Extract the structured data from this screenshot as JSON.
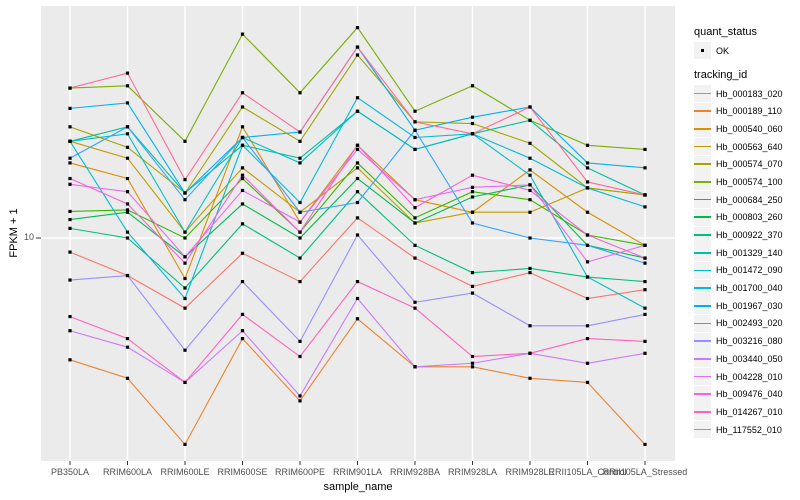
{
  "chart_data": {
    "type": "line",
    "title": "",
    "xlabel": "sample_name",
    "ylabel": "FPKM + 1",
    "y_scale": "log10",
    "y_tick_label": "10",
    "y_tick_value": 10,
    "ylim": [
      1.12,
      90
    ],
    "grid": "on",
    "legend_position": "right",
    "panel_bg": "#EBEBEB",
    "grid_color": "#FFFFFF",
    "point_color": "#000000",
    "axis_text_color": "#4d4d4d",
    "legend": {
      "quant_status_title": "quant_status",
      "quant_status_ok_label": "OK",
      "tracking_title": "tracking_id"
    },
    "categories": [
      "PB350LA",
      "RRIM600LA",
      "RRIM600LE",
      "RRIM600SE",
      "RRIM600PE",
      "RRIM901LA",
      "RRIM928BA",
      "RRIM928LA",
      "RRIM928LE",
      "RRII105LA_Control",
      "RRII105LA_Stressed"
    ],
    "series": [
      {
        "name": "Hb_000183_020",
        "color": "#F8766D",
        "values": [
          8.7,
          6.9,
          5.0,
          8.6,
          6.5,
          12.2,
          8.2,
          6.2,
          7.1,
          5.5,
          6.0
        ]
      },
      {
        "name": "Hb_000189_110",
        "color": "#EA8331",
        "values": [
          3.0,
          2.5,
          1.3,
          3.7,
          2.0,
          4.5,
          2.8,
          2.8,
          2.5,
          2.4,
          1.3
        ]
      },
      {
        "name": "Hb_000540_060",
        "color": "#D89000",
        "values": [
          21,
          18,
          6.7,
          30,
          11.7,
          25,
          14.6,
          12.9,
          19.6,
          12.9,
          9.3
        ]
      },
      {
        "name": "Hb_000563_640",
        "color": "#C09B00",
        "values": [
          26,
          22,
          10.6,
          20,
          12.9,
          20,
          11.6,
          12.9,
          12.9,
          16.4,
          15.3
        ]
      },
      {
        "name": "Hb_000574_070",
        "color": "#A3A500",
        "values": [
          30,
          24.5,
          15.6,
          36.5,
          26,
          61,
          31.5,
          31,
          25.5,
          16.4,
          15.3
        ]
      },
      {
        "name": "Hb_000574_100",
        "color": "#7CAE00",
        "values": [
          44,
          45,
          26,
          75,
          42,
          80,
          35,
          45,
          32,
          25,
          24
        ]
      },
      {
        "name": "Hb_000684_250",
        "color": "#39B600",
        "values": [
          13,
          13.2,
          10,
          18,
          10.6,
          21,
          12.2,
          15.8,
          14.6,
          10.3,
          9.3
        ]
      },
      {
        "name": "Hb_000803_260",
        "color": "#00BB4E",
        "values": [
          12,
          12.9,
          8.3,
          14,
          10,
          18,
          11.6,
          15,
          16.9,
          9.3,
          8.2
        ]
      },
      {
        "name": "Hb_000922_370",
        "color": "#00BF7D",
        "values": [
          11,
          10,
          6.1,
          11.5,
          8.2,
          15.8,
          9.3,
          7.1,
          7.4,
          6.8,
          6.5
        ]
      },
      {
        "name": "Hb_001329_140",
        "color": "#00C1A3",
        "values": [
          26,
          30,
          15.6,
          25,
          22,
          35,
          24,
          28,
          32,
          20,
          15.3
        ]
      },
      {
        "name": "Hb_001472_090",
        "color": "#00BFC4",
        "values": [
          26,
          28,
          10.6,
          27,
          21,
          35,
          24,
          28,
          18.6,
          6.8,
          5.0
        ]
      },
      {
        "name": "Hb_001700_040",
        "color": "#00BBDA",
        "values": [
          26,
          10.6,
          5.5,
          25,
          14.2,
          40,
          27,
          28,
          22,
          16.4,
          13.6
        ]
      },
      {
        "name": "Hb_001967_030",
        "color": "#00B0F6",
        "values": [
          36,
          38,
          15.6,
          27,
          28.5,
          66,
          29,
          33,
          36.5,
          21,
          20
        ]
      },
      {
        "name": "Hb_002493_020",
        "color": "#35A2FF",
        "values": [
          22,
          30,
          14.6,
          27,
          12.9,
          14.2,
          29,
          11.6,
          10,
          9.3,
          7.8
        ]
      },
      {
        "name": "Hb_003216_080",
        "color": "#9590FF",
        "values": [
          6.6,
          6.9,
          3.3,
          6.5,
          3.6,
          10.3,
          5.3,
          5.8,
          4.2,
          4.2,
          4.7
        ]
      },
      {
        "name": "Hb_003440_050",
        "color": "#C77CFF",
        "values": [
          4.0,
          3.4,
          2.4,
          4.0,
          2.1,
          5.5,
          2.8,
          2.9,
          3.2,
          2.9,
          3.2
        ]
      },
      {
        "name": "Hb_004228_010",
        "color": "#E76BF3",
        "values": [
          17,
          15.8,
          8.3,
          16,
          11.7,
          24,
          14.6,
          16.5,
          16.9,
          7.9,
          9.3
        ]
      },
      {
        "name": "Hb_009476_040",
        "color": "#FA62DB",
        "values": [
          18,
          14,
          7.8,
          18.6,
          10.6,
          25,
          13.5,
          18.6,
          16,
          10.3,
          8.2
        ]
      },
      {
        "name": "Hb_014267_010",
        "color": "#FF62BC",
        "values": [
          4.6,
          3.7,
          2.4,
          4.7,
          3.1,
          6.5,
          5.0,
          3.1,
          3.2,
          3.7,
          3.6
        ]
      },
      {
        "name": "Hb_117552_010",
        "color": "#FF6A98",
        "values": [
          44,
          51,
          17.8,
          42,
          28.5,
          66,
          31.5,
          28,
          36.5,
          17.4,
          15.3
        ]
      }
    ]
  }
}
